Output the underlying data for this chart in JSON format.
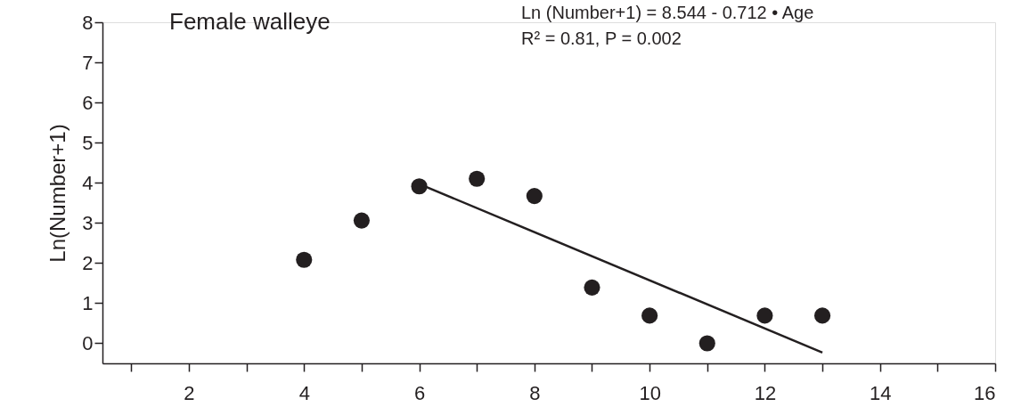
{
  "chart_data": {
    "type": "scatter",
    "ylabel": "Ln(Number+1)",
    "annotations": [
      "Female walleye",
      "Ln (Number+1) = 8.544 - 0.712 • Age",
      "R² = 0.81, P = 0.002"
    ],
    "xlim": [
      0.5,
      16
    ],
    "ylim": [
      -0.5,
      8
    ],
    "xticks": [
      {
        "value": 1,
        "label": null
      },
      2,
      {
        "value": 3,
        "label": null
      },
      4,
      {
        "value": 5,
        "label": null
      },
      6,
      {
        "value": 7,
        "label": null
      },
      8,
      {
        "value": 9,
        "label": null
      },
      10,
      {
        "value": 11,
        "label": null
      },
      12,
      {
        "value": 13,
        "label": null
      },
      14,
      {
        "value": 15,
        "label": null
      },
      16
    ],
    "yticks": [
      0,
      1,
      2,
      3,
      4,
      5,
      6,
      7,
      8
    ],
    "grid": false,
    "marker": "circle",
    "series": [
      {
        "color": "#231f20",
        "x": [
          4,
          5,
          6,
          7,
          8,
          9,
          10,
          11,
          12,
          13
        ],
        "values": [
          2.08,
          3.06,
          3.91,
          4.1,
          3.67,
          1.39,
          0.69,
          0,
          0.69,
          0.69
        ]
      },
      {
        "type": "line",
        "color": "#231f20",
        "line_style": "solid",
        "marker": "none",
        "x": [
          6,
          13
        ],
        "values": [
          3.97,
          -0.23
        ]
      }
    ]
  }
}
